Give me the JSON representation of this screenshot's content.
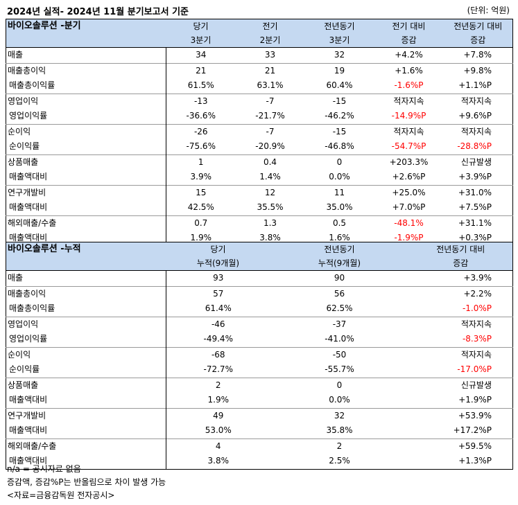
{
  "title": "2024년 실적- 2024년 11월 분기보고서 기준",
  "unit": "(단위: 억원)",
  "quarter": {
    "section": "바이오솔루션 -분기",
    "headers": [
      [
        "당기",
        "3분기"
      ],
      [
        "전기",
        "2분기"
      ],
      [
        "전년동기",
        "3분기"
      ],
      [
        "전기 대비",
        "증감"
      ],
      [
        "전년동기 대비",
        "증감"
      ]
    ],
    "rows": [
      {
        "label": "매출",
        "sub": false,
        "g": true,
        "v": [
          "34",
          "33",
          "32",
          "+4.2%",
          "+7.8%"
        ]
      },
      {
        "label": "매출총이익",
        "sub": false,
        "g": true,
        "v": [
          "21",
          "21",
          "19",
          "+1.6%",
          "+9.8%"
        ]
      },
      {
        "label": "매출총이익률",
        "sub": true,
        "g": false,
        "v": [
          "61.5%",
          "63.1%",
          "60.4%",
          "-1.6%P",
          "+1.1%P"
        ]
      },
      {
        "label": "영업이익",
        "sub": false,
        "g": true,
        "v": [
          "-13",
          "-7",
          "-15",
          "적자지속",
          "적자지속"
        ]
      },
      {
        "label": "영업이익률",
        "sub": true,
        "g": false,
        "v": [
          "-36.6%",
          "-21.7%",
          "-46.2%",
          "-14.9%P",
          "+9.6%P"
        ]
      },
      {
        "label": "순이익",
        "sub": false,
        "g": true,
        "v": [
          "-26",
          "-7",
          "-15",
          "적자지속",
          "적자지속"
        ]
      },
      {
        "label": "순이익률",
        "sub": true,
        "g": false,
        "v": [
          "-75.6%",
          "-20.9%",
          "-46.8%",
          "-54.7%P",
          "-28.8%P"
        ]
      },
      {
        "label": "상품매출",
        "sub": false,
        "g": true,
        "v": [
          "1",
          "0.4",
          "0",
          "+203.3%",
          "신규발생"
        ]
      },
      {
        "label": "매출액대비",
        "sub": true,
        "g": false,
        "v": [
          "3.9%",
          "1.4%",
          "0.0%",
          "+2.6%P",
          "+3.9%P"
        ]
      },
      {
        "label": "연구개발비",
        "sub": false,
        "g": true,
        "v": [
          "15",
          "12",
          "11",
          "+25.0%",
          "+31.0%"
        ]
      },
      {
        "label": "매출액대비",
        "sub": true,
        "g": false,
        "v": [
          "42.5%",
          "35.5%",
          "35.0%",
          "+7.0%P",
          "+7.5%P"
        ]
      },
      {
        "label": "해외매출/수출",
        "sub": false,
        "g": true,
        "v": [
          "0.7",
          "1.3",
          "0.5",
          "-48.1%",
          "+31.1%"
        ]
      },
      {
        "label": "매출액대비",
        "sub": true,
        "g": false,
        "v": [
          "1.9%",
          "3.8%",
          "1.6%",
          "-1.9%P",
          "+0.3%P"
        ]
      }
    ]
  },
  "cumulative": {
    "section": "바이오솔루션 -누적",
    "headers": [
      [
        "당기",
        "누적(9개월)"
      ],
      [
        "전년동기",
        "누적(9개월)"
      ],
      [
        "전년동기 대비",
        "증감"
      ]
    ],
    "rows": [
      {
        "label": "매출",
        "sub": false,
        "g": true,
        "v": [
          "93",
          "90",
          "+3.9%"
        ]
      },
      {
        "label": "매출총이익",
        "sub": false,
        "g": true,
        "v": [
          "57",
          "56",
          "+2.2%"
        ]
      },
      {
        "label": "매출총이익률",
        "sub": true,
        "g": false,
        "v": [
          "61.4%",
          "62.5%",
          "-1.0%P"
        ]
      },
      {
        "label": "영업이익",
        "sub": false,
        "g": true,
        "v": [
          "-46",
          "-37",
          "적자지속"
        ]
      },
      {
        "label": "영업이익률",
        "sub": true,
        "g": false,
        "v": [
          "-49.4%",
          "-41.0%",
          "-8.3%P"
        ]
      },
      {
        "label": "순이익",
        "sub": false,
        "g": true,
        "v": [
          "-68",
          "-50",
          "적자지속"
        ]
      },
      {
        "label": "순이익률",
        "sub": true,
        "g": false,
        "v": [
          "-72.7%",
          "-55.7%",
          "-17.0%P"
        ]
      },
      {
        "label": "상품매출",
        "sub": false,
        "g": true,
        "v": [
          "2",
          "0",
          "신규발생"
        ]
      },
      {
        "label": "매출액대비",
        "sub": true,
        "g": false,
        "v": [
          "1.9%",
          "0.0%",
          "+1.9%P"
        ]
      },
      {
        "label": "연구개발비",
        "sub": false,
        "g": true,
        "v": [
          "49",
          "32",
          "+53.9%"
        ]
      },
      {
        "label": "매출액대비",
        "sub": true,
        "g": false,
        "v": [
          "53.0%",
          "35.8%",
          "+17.2%P"
        ]
      },
      {
        "label": "해외매출/수출",
        "sub": false,
        "g": true,
        "v": [
          "4",
          "2",
          "+59.5%"
        ]
      },
      {
        "label": "매출액대비",
        "sub": true,
        "g": false,
        "v": [
          "3.8%",
          "2.5%",
          "+1.3%P"
        ]
      }
    ]
  },
  "notes": [
    "n/a = 공시자료 없음",
    "증감액, 증감%P는 반올림으로 차이 발생 가능",
    "<자료=금융감독원 전자공시>"
  ]
}
